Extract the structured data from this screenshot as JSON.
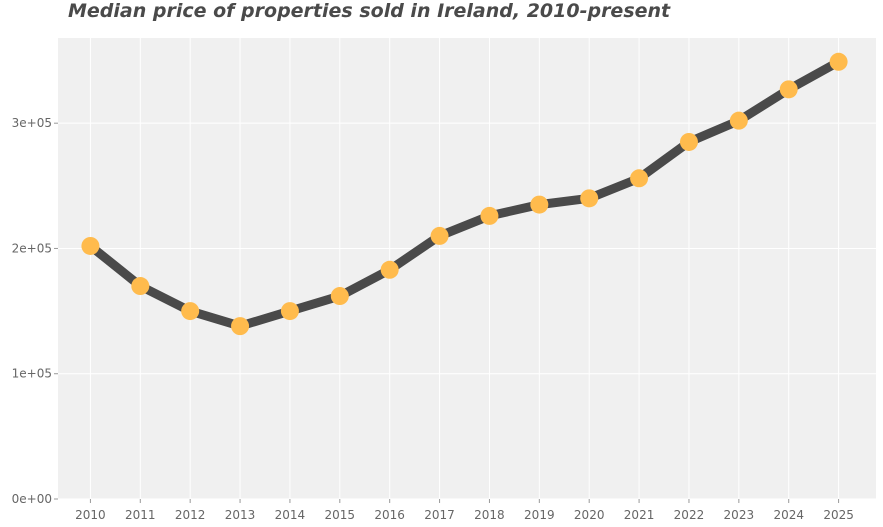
{
  "chart_data": {
    "type": "line",
    "title": "Median price of properties sold in Ireland, 2010-present",
    "xlabel": "",
    "ylabel": "",
    "x": [
      2010,
      2011,
      2012,
      2013,
      2014,
      2015,
      2016,
      2017,
      2018,
      2019,
      2020,
      2021,
      2022,
      2023,
      2024,
      2025
    ],
    "series": [
      {
        "values": [
          202000,
          170000,
          150000,
          138000,
          150000,
          162000,
          183000,
          210000,
          226000,
          235000,
          240000,
          256000,
          285000,
          302000,
          327000,
          349000
        ]
      }
    ],
    "xlim": [
      2009.35,
      2025.75
    ],
    "ylim": [
      0,
      368000
    ],
    "yticks": [
      0,
      100000,
      200000,
      300000
    ],
    "ytick_labels": [
      "0e+00",
      "1e+05",
      "2e+05",
      "3e+05"
    ],
    "xtick_labels": [
      "2010",
      "2011",
      "2012",
      "2013",
      "2014",
      "2015",
      "2016",
      "2017",
      "2018",
      "2019",
      "2020",
      "2021",
      "2022",
      "2023",
      "2024",
      "2025"
    ],
    "grid": true,
    "legend": "none",
    "colors": {
      "line": "#4a4a4a",
      "marker": "#ffbb4d",
      "panel": "#f0f0f0",
      "grid": "#ffffff"
    }
  }
}
